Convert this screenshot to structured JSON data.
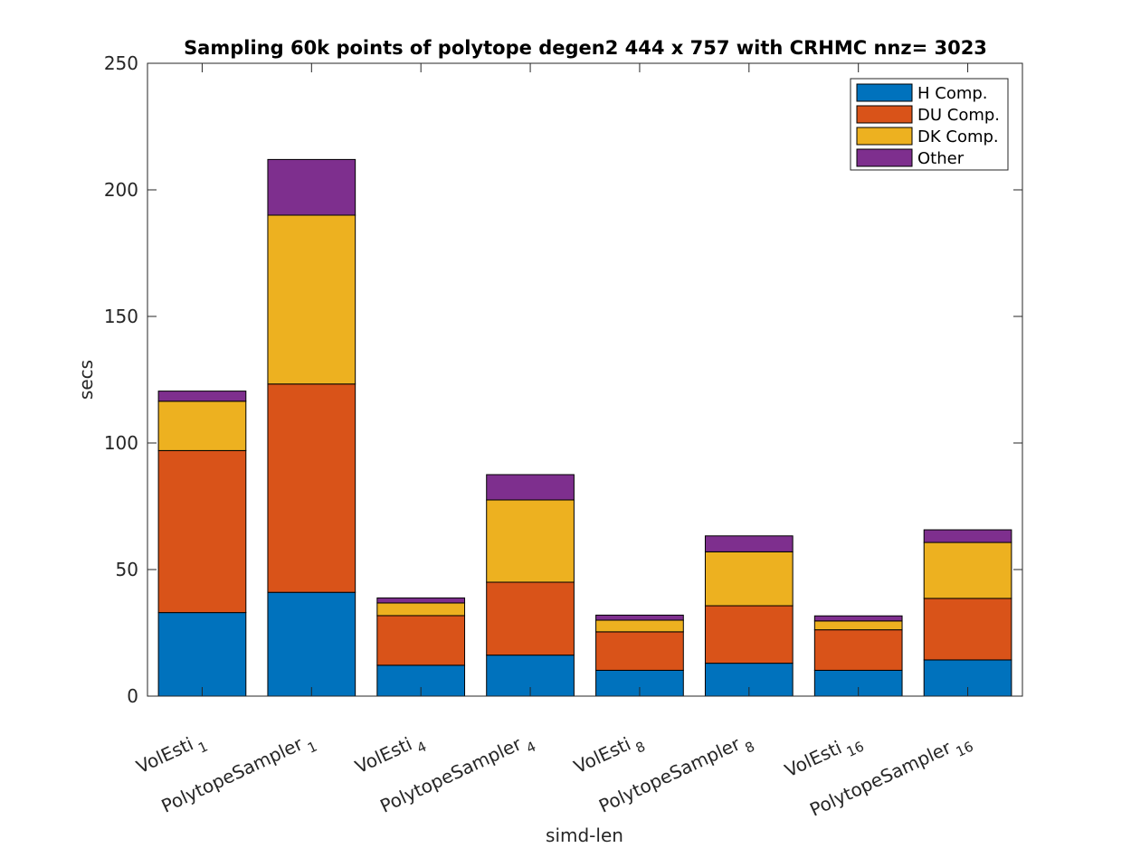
{
  "chart_data": {
    "type": "bar",
    "stacked": true,
    "title": "Sampling 60k points of polytope degen2 444 x 757 with CRHMC nnz= 3023",
    "xlabel": "simd-len",
    "ylabel": "secs",
    "ylim": [
      0,
      250
    ],
    "yticks": [
      0,
      50,
      100,
      150,
      200,
      250
    ],
    "grid": false,
    "legend_position": "top-right",
    "categories": [
      {
        "base": "VolEsti",
        "sub": "1"
      },
      {
        "base": "PolytopeSampler",
        "sub": "1"
      },
      {
        "base": "VolEsti",
        "sub": "4"
      },
      {
        "base": "PolytopeSampler",
        "sub": "4"
      },
      {
        "base": "VolEsti",
        "sub": "8"
      },
      {
        "base": "PolytopeSampler",
        "sub": "8"
      },
      {
        "base": "VolEsti",
        "sub": "16"
      },
      {
        "base": "PolytopeSampler",
        "sub": "16"
      }
    ],
    "series": [
      {
        "name": "H Comp.",
        "color": "#0072BD",
        "values": [
          33,
          41,
          12.2,
          16.2,
          10.2,
          13,
          10.2,
          14.3
        ]
      },
      {
        "name": "DU Comp.",
        "color": "#D95319",
        "values": [
          64,
          82.3,
          19.6,
          28.8,
          15.2,
          22.7,
          16,
          24.3
        ]
      },
      {
        "name": "DK Comp.",
        "color": "#EDB120",
        "values": [
          19.5,
          66.7,
          5,
          32.5,
          4.6,
          21.3,
          3.5,
          22.1
        ]
      },
      {
        "name": "Other",
        "color": "#7E2F8E",
        "values": [
          4,
          22,
          2,
          10,
          2,
          6.3,
          2,
          5
        ]
      }
    ]
  }
}
